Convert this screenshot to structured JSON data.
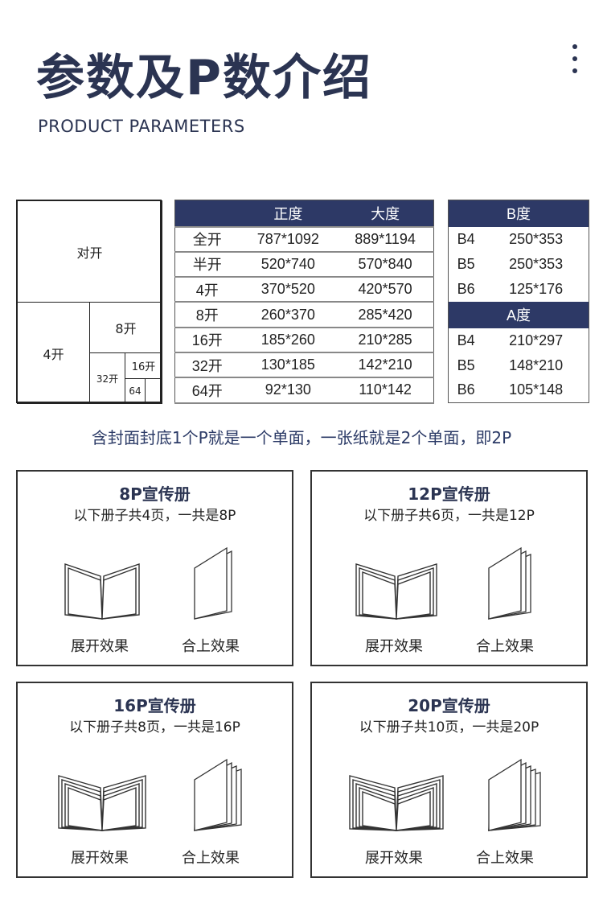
{
  "header": {
    "title": "参数及P数介绍",
    "subtitle": "PRODUCT PARAMETERS"
  },
  "diagram": {
    "labels": [
      "对开",
      "4开",
      "8开",
      "32开",
      "16开",
      "64"
    ]
  },
  "size_table": {
    "headers": [
      "",
      "正度",
      "大度"
    ],
    "rows": [
      [
        "全开",
        "787*1092",
        "889*1194"
      ],
      [
        "半开",
        "520*740",
        "570*840"
      ],
      [
        "4开",
        "370*520",
        "420*570"
      ],
      [
        "8开",
        "260*370",
        "285*420"
      ],
      [
        "16开",
        "185*260",
        "210*285"
      ],
      [
        "32开",
        "130*185",
        "142*210"
      ],
      [
        "64开",
        "92*130",
        "110*142"
      ]
    ]
  },
  "b_table": {
    "header": "B度",
    "rows": [
      [
        "B4",
        "250*353"
      ],
      [
        "B5",
        "250*353"
      ],
      [
        "B6",
        "125*176"
      ]
    ]
  },
  "a_table": {
    "header": "A度",
    "rows": [
      [
        "B4",
        "210*297"
      ],
      [
        "B5",
        "148*210"
      ],
      [
        "B6",
        "105*148"
      ]
    ]
  },
  "caption": "含封面封底1个P就是一个单面，一张纸就是2个单面，即2P",
  "cards": [
    {
      "title": "8P宣传册",
      "desc": "以下册子共4页，一共是8P",
      "pages": 4,
      "open_label": "展开效果",
      "closed_label": "合上效果"
    },
    {
      "title": "12P宣传册",
      "desc": "以下册子共6页，一共是12P",
      "pages": 6,
      "open_label": "展开效果",
      "closed_label": "合上效果"
    },
    {
      "title": "16P宣传册",
      "desc": "以下册子共8页，一共是16P",
      "pages": 8,
      "open_label": "展开效果",
      "closed_label": "合上效果"
    },
    {
      "title": "20P宣传册",
      "desc": "以下册子共10页，一共是20P",
      "pages": 10,
      "open_label": "展开效果",
      "closed_label": "合上效果"
    }
  ],
  "colors": {
    "navy": "#2d3966",
    "title": "#2b3452"
  }
}
